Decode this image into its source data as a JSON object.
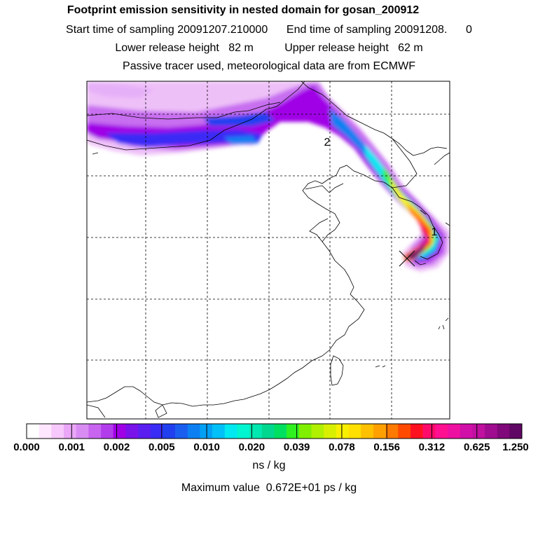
{
  "header": {
    "title": "Footprint emission sensitivity in nested domain for gosan_200912",
    "sampling_line": "Start time of sampling 20091207.210000      End time of sampling 20091208.      0",
    "release_line": "Lower release height   82 m          Upper release height   62 m",
    "tracer_line": "Passive tracer used, meteorological data are from ECMWF"
  },
  "map": {
    "point_labels": [
      "1",
      "2"
    ]
  },
  "colorbar": {
    "tick_labels": [
      "0.000",
      "0.001",
      "0.002",
      "0.005",
      "0.010",
      "0.020",
      "0.039",
      "0.078",
      "0.156",
      "0.312",
      "0.625",
      "1.250"
    ],
    "colors": [
      "#ffffff",
      "#ffe6ff",
      "#f7c8fb",
      "#eaa6f7",
      "#d88cf3",
      "#c864f0",
      "#b23ceb",
      "#a000e6",
      "#7a12ea",
      "#5a1ef0",
      "#3a2cf5",
      "#2040f0",
      "#1a5ef0",
      "#0c80f2",
      "#00a0f5",
      "#00c0f8",
      "#00e8f0",
      "#00f5d0",
      "#00e8b0",
      "#00d890",
      "#00e060",
      "#30f020",
      "#80f000",
      "#b0f000",
      "#d8f000",
      "#f8f000",
      "#ffe000",
      "#ffc000",
      "#ffa000",
      "#ff7a00",
      "#ff4a00",
      "#ff1020",
      "#ff0a6a",
      "#ff1090",
      "#ee10a0",
      "#d010a8",
      "#c010a0",
      "#a00c90",
      "#80087a",
      "#600664"
    ],
    "unit": "ns / kg"
  },
  "footer": {
    "max_value": "Maximum value  0.672E+01 ps / kg"
  }
}
